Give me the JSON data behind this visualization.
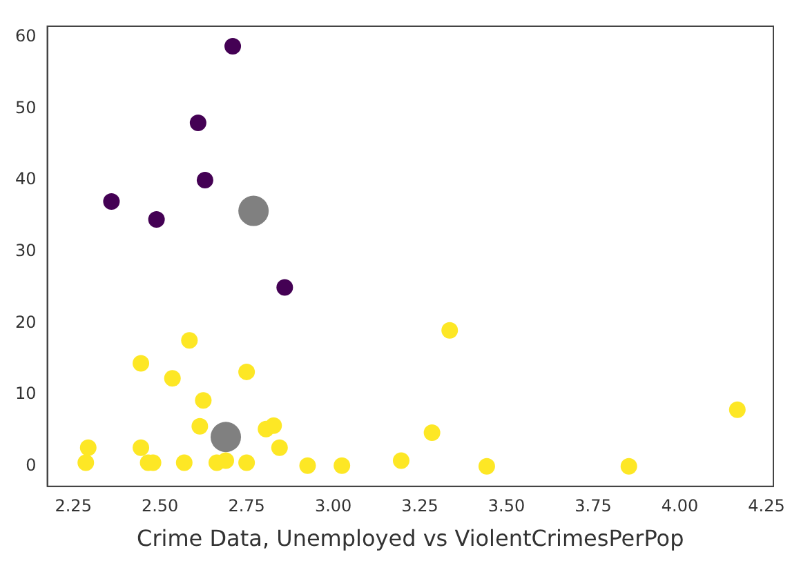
{
  "chart_data": {
    "type": "scatter",
    "xlabel": "Crime Data, Unemployed vs ViolentCrimesPerPop",
    "xlim": [
      2.175,
      4.27
    ],
    "ylim": [
      -2.8,
      61.5
    ],
    "xticks": [
      {
        "value": 2.25,
        "label": "2.25"
      },
      {
        "value": 2.5,
        "label": "2.50"
      },
      {
        "value": 2.75,
        "label": "2.75"
      },
      {
        "value": 3,
        "label": "3.00"
      },
      {
        "value": 3.25,
        "label": "3.25"
      },
      {
        "value": 3.5,
        "label": "3.50"
      },
      {
        "value": 3.75,
        "label": "3.75"
      },
      {
        "value": 4,
        "label": "4.00"
      },
      {
        "value": 4.25,
        "label": "4.25"
      }
    ],
    "yticks": [
      0,
      10,
      20,
      30,
      40,
      50,
      60
    ],
    "grid": false,
    "legend": false,
    "marker": "circle",
    "series": [
      {
        "color": "#440154",
        "x": [
          2.36,
          2.49,
          2.61,
          2.63,
          2.71,
          2.86
        ],
        "values": [
          37,
          34.5,
          48,
          40,
          58.7,
          25
        ]
      },
      {
        "color": "#fde725",
        "x": [
          2.286,
          2.293,
          2.445,
          2.445,
          2.466,
          2.48,
          2.536,
          2.585,
          2.57,
          2.625,
          2.615,
          2.664,
          2.69,
          2.75,
          2.75,
          2.806,
          2.828,
          2.845,
          2.926,
          3.025,
          3.196,
          3.285,
          3.336,
          3.443,
          3.853,
          4.166
        ],
        "values": [
          0.5,
          2.6,
          14.4,
          2.6,
          0.5,
          0.5,
          12.3,
          17.6,
          0.5,
          9.2,
          5.6,
          0.5,
          0.8,
          13.2,
          0.5,
          5.2,
          5.7,
          2.6,
          0.1,
          0.1,
          0.8,
          4.7,
          19,
          0,
          0,
          7.9
        ]
      },
      {
        "color": "#808080",
        "x": [
          2.77,
          2.69
        ],
        "values": [
          35.7,
          4.1
        ],
        "sizes": [
          1,
          1
        ]
      }
    ]
  }
}
